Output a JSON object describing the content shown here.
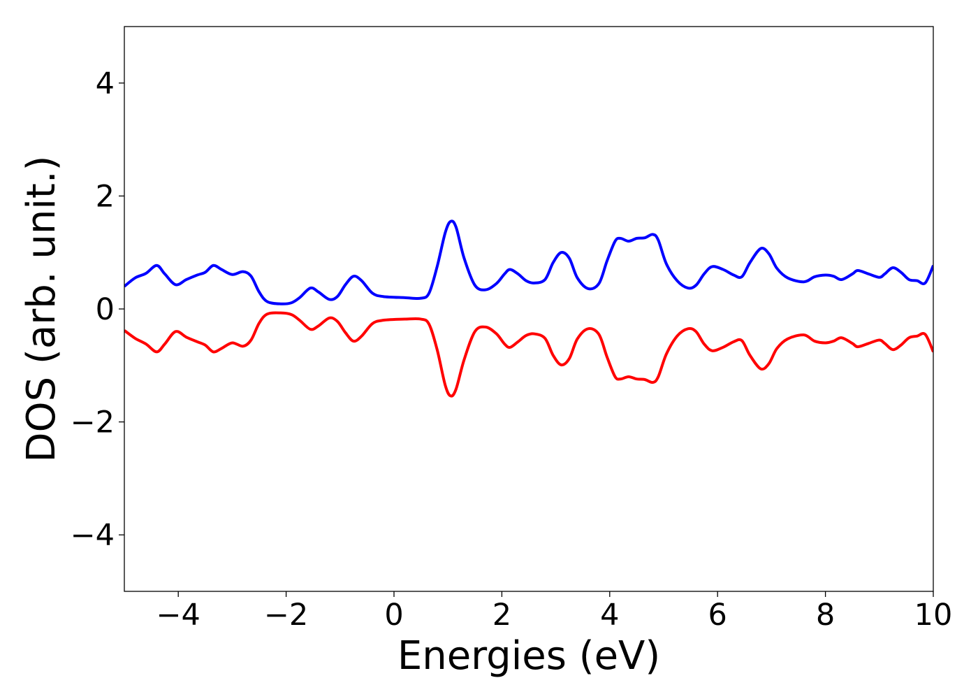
{
  "chart_data": {
    "type": "line",
    "xlabel": "Energies (eV)",
    "ylabel": "DOS (arb. unit.)",
    "xlim": [
      -5,
      10
    ],
    "ylim": [
      -5,
      5
    ],
    "x_ticks": [
      -4,
      -2,
      0,
      2,
      4,
      6,
      8,
      10
    ],
    "y_ticks": [
      -4,
      -2,
      0,
      2,
      4
    ],
    "x_tick_labels": [
      "−4",
      "−2",
      "0",
      "2",
      "4",
      "6",
      "8",
      "10"
    ],
    "y_tick_labels": [
      "−4",
      "−2",
      "0",
      "2",
      "4"
    ],
    "grid": false,
    "legend": "none",
    "series": [
      {
        "color": "#0000ff",
        "points": [
          [
            -5.0,
            0.4
          ],
          [
            -4.8,
            0.55
          ],
          [
            -4.6,
            0.63
          ],
          [
            -4.4,
            0.77
          ],
          [
            -4.25,
            0.62
          ],
          [
            -4.05,
            0.43
          ],
          [
            -3.85,
            0.52
          ],
          [
            -3.65,
            0.6
          ],
          [
            -3.5,
            0.65
          ],
          [
            -3.35,
            0.77
          ],
          [
            -3.2,
            0.7
          ],
          [
            -3.0,
            0.61
          ],
          [
            -2.8,
            0.66
          ],
          [
            -2.65,
            0.58
          ],
          [
            -2.5,
            0.3
          ],
          [
            -2.35,
            0.13
          ],
          [
            -2.1,
            0.09
          ],
          [
            -1.9,
            0.11
          ],
          [
            -1.75,
            0.2
          ],
          [
            -1.55,
            0.37
          ],
          [
            -1.4,
            0.3
          ],
          [
            -1.2,
            0.17
          ],
          [
            -1.05,
            0.22
          ],
          [
            -0.9,
            0.43
          ],
          [
            -0.75,
            0.58
          ],
          [
            -0.6,
            0.5
          ],
          [
            -0.4,
            0.28
          ],
          [
            -0.2,
            0.22
          ],
          [
            0.2,
            0.2
          ],
          [
            0.5,
            0.19
          ],
          [
            0.65,
            0.28
          ],
          [
            0.8,
            0.75
          ],
          [
            0.95,
            1.35
          ],
          [
            1.05,
            1.55
          ],
          [
            1.15,
            1.45
          ],
          [
            1.3,
            0.9
          ],
          [
            1.5,
            0.42
          ],
          [
            1.7,
            0.34
          ],
          [
            1.9,
            0.45
          ],
          [
            2.05,
            0.62
          ],
          [
            2.15,
            0.7
          ],
          [
            2.3,
            0.62
          ],
          [
            2.45,
            0.5
          ],
          [
            2.6,
            0.46
          ],
          [
            2.8,
            0.52
          ],
          [
            2.95,
            0.82
          ],
          [
            3.1,
            1.0
          ],
          [
            3.25,
            0.9
          ],
          [
            3.4,
            0.55
          ],
          [
            3.6,
            0.36
          ],
          [
            3.8,
            0.45
          ],
          [
            3.95,
            0.85
          ],
          [
            4.1,
            1.2
          ],
          [
            4.2,
            1.25
          ],
          [
            4.35,
            1.2
          ],
          [
            4.5,
            1.25
          ],
          [
            4.65,
            1.26
          ],
          [
            4.8,
            1.32
          ],
          [
            4.9,
            1.22
          ],
          [
            5.05,
            0.8
          ],
          [
            5.25,
            0.5
          ],
          [
            5.45,
            0.37
          ],
          [
            5.6,
            0.42
          ],
          [
            5.75,
            0.62
          ],
          [
            5.9,
            0.75
          ],
          [
            6.1,
            0.7
          ],
          [
            6.3,
            0.6
          ],
          [
            6.45,
            0.57
          ],
          [
            6.6,
            0.82
          ],
          [
            6.8,
            1.07
          ],
          [
            6.95,
            0.98
          ],
          [
            7.1,
            0.72
          ],
          [
            7.3,
            0.55
          ],
          [
            7.6,
            0.48
          ],
          [
            7.8,
            0.57
          ],
          [
            8.0,
            0.6
          ],
          [
            8.15,
            0.58
          ],
          [
            8.3,
            0.52
          ],
          [
            8.5,
            0.62
          ],
          [
            8.6,
            0.68
          ],
          [
            8.8,
            0.62
          ],
          [
            9.0,
            0.56
          ],
          [
            9.1,
            0.62
          ],
          [
            9.25,
            0.73
          ],
          [
            9.4,
            0.65
          ],
          [
            9.55,
            0.52
          ],
          [
            9.7,
            0.5
          ],
          [
            9.85,
            0.46
          ],
          [
            10.0,
            0.77
          ]
        ]
      },
      {
        "color": "#ff0000",
        "points": [
          [
            -5.0,
            -0.38
          ],
          [
            -4.8,
            -0.52
          ],
          [
            -4.6,
            -0.62
          ],
          [
            -4.4,
            -0.76
          ],
          [
            -4.25,
            -0.62
          ],
          [
            -4.05,
            -0.4
          ],
          [
            -3.85,
            -0.5
          ],
          [
            -3.65,
            -0.58
          ],
          [
            -3.5,
            -0.64
          ],
          [
            -3.35,
            -0.76
          ],
          [
            -3.2,
            -0.7
          ],
          [
            -3.0,
            -0.6
          ],
          [
            -2.8,
            -0.66
          ],
          [
            -2.65,
            -0.55
          ],
          [
            -2.5,
            -0.25
          ],
          [
            -2.35,
            -0.09
          ],
          [
            -2.1,
            -0.07
          ],
          [
            -1.9,
            -0.1
          ],
          [
            -1.75,
            -0.2
          ],
          [
            -1.55,
            -0.36
          ],
          [
            -1.4,
            -0.3
          ],
          [
            -1.2,
            -0.16
          ],
          [
            -1.05,
            -0.22
          ],
          [
            -0.9,
            -0.42
          ],
          [
            -0.75,
            -0.57
          ],
          [
            -0.6,
            -0.48
          ],
          [
            -0.4,
            -0.26
          ],
          [
            -0.2,
            -0.2
          ],
          [
            0.2,
            -0.18
          ],
          [
            0.5,
            -0.18
          ],
          [
            0.65,
            -0.27
          ],
          [
            0.8,
            -0.72
          ],
          [
            0.95,
            -1.35
          ],
          [
            1.05,
            -1.54
          ],
          [
            1.15,
            -1.42
          ],
          [
            1.3,
            -0.9
          ],
          [
            1.5,
            -0.4
          ],
          [
            1.7,
            -0.32
          ],
          [
            1.9,
            -0.44
          ],
          [
            2.05,
            -0.62
          ],
          [
            2.15,
            -0.68
          ],
          [
            2.3,
            -0.58
          ],
          [
            2.45,
            -0.47
          ],
          [
            2.6,
            -0.44
          ],
          [
            2.8,
            -0.52
          ],
          [
            2.95,
            -0.82
          ],
          [
            3.1,
            -0.99
          ],
          [
            3.25,
            -0.88
          ],
          [
            3.4,
            -0.53
          ],
          [
            3.6,
            -0.35
          ],
          [
            3.8,
            -0.45
          ],
          [
            3.95,
            -0.85
          ],
          [
            4.1,
            -1.2
          ],
          [
            4.2,
            -1.24
          ],
          [
            4.35,
            -1.2
          ],
          [
            4.5,
            -1.24
          ],
          [
            4.65,
            -1.25
          ],
          [
            4.8,
            -1.3
          ],
          [
            4.9,
            -1.2
          ],
          [
            5.05,
            -0.8
          ],
          [
            5.25,
            -0.48
          ],
          [
            5.45,
            -0.35
          ],
          [
            5.6,
            -0.4
          ],
          [
            5.75,
            -0.62
          ],
          [
            5.9,
            -0.74
          ],
          [
            6.1,
            -0.68
          ],
          [
            6.3,
            -0.58
          ],
          [
            6.45,
            -0.56
          ],
          [
            6.6,
            -0.82
          ],
          [
            6.8,
            -1.06
          ],
          [
            6.95,
            -0.97
          ],
          [
            7.1,
            -0.7
          ],
          [
            7.3,
            -0.53
          ],
          [
            7.6,
            -0.46
          ],
          [
            7.8,
            -0.57
          ],
          [
            8.0,
            -0.6
          ],
          [
            8.15,
            -0.57
          ],
          [
            8.3,
            -0.51
          ],
          [
            8.5,
            -0.61
          ],
          [
            8.6,
            -0.67
          ],
          [
            8.8,
            -0.61
          ],
          [
            9.0,
            -0.55
          ],
          [
            9.1,
            -0.61
          ],
          [
            9.25,
            -0.72
          ],
          [
            9.4,
            -0.64
          ],
          [
            9.55,
            -0.51
          ],
          [
            9.7,
            -0.48
          ],
          [
            9.85,
            -0.45
          ],
          [
            10.0,
            -0.76
          ]
        ]
      }
    ]
  }
}
